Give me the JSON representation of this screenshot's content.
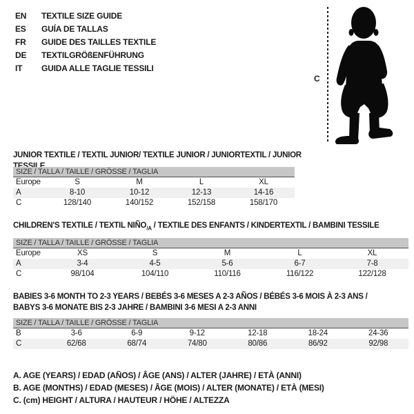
{
  "header": {
    "languages": [
      {
        "code": "EN",
        "title": "TEXTILE SIZE GUIDE"
      },
      {
        "code": "ES",
        "title": "GUÍA DE TALLAS"
      },
      {
        "code": "FR",
        "title": "GUIDE DES TAILLES TEXTILE"
      },
      {
        "code": "DE",
        "title": "TEXTILGRÖßENFÜHRUNG"
      },
      {
        "code": "IT",
        "title": "GUIDA ALLE TAGLIE TESSILI"
      }
    ]
  },
  "figure": {
    "measure_label": "C"
  },
  "colors": {
    "table_header_bg": "#c6c6c6",
    "table_header_border": "#4e4e4e",
    "row_shade": "#f0f0f0",
    "silhouette": "#0a0a0a",
    "text": "#1a1a1a"
  },
  "sections": [
    {
      "title_parts": [
        {
          "text": "JUNIOR TEXTILE / TEXTIL JUNIOR/ TEXTILE JUNIOR / JUNIORTEXTIL / JUNIOR TESSILE"
        }
      ],
      "table": {
        "size_header": "SIZE / TALLA / TAILLE / GRÖSSE / TAGLIA",
        "rows": [
          {
            "label": "Europe",
            "cells": [
              "S",
              "M",
              "L",
              "XL"
            ],
            "shaded": false
          },
          {
            "label": "A",
            "cells": [
              "8-10",
              "10-12",
              "12-13",
              "14-16"
            ],
            "shaded": true
          },
          {
            "label": "C",
            "cells": [
              "128/140",
              "140/152",
              "152/158",
              "158/170"
            ],
            "shaded": false
          }
        ]
      }
    },
    {
      "title_parts": [
        {
          "text": "CHILDREN'S TEXTILE / TEXTIL NIÑO"
        },
        {
          "text": "/A",
          "sub": true
        },
        {
          "text": " / TEXTILE DES ENFANTS / KINDERTEXTIL / BAMBINI TESSILE"
        }
      ],
      "table": {
        "size_header": "SIZE / TALLA / TAILLE / GRÖSSE / TAGLIA",
        "rows": [
          {
            "label": "Europe",
            "cells": [
              "XS",
              "S",
              "M",
              "L",
              "XL"
            ],
            "shaded": false
          },
          {
            "label": "A",
            "cells": [
              "3-4",
              "4-5",
              "5-6",
              "6-7",
              "7-8"
            ],
            "shaded": true
          },
          {
            "label": "C",
            "cells": [
              "98/104",
              "104/110",
              "110/116",
              "116/122",
              "122/128"
            ],
            "shaded": false
          }
        ]
      }
    },
    {
      "title_parts": [
        {
          "text": "BABIES 3-6 MONTH TO 2-3 YEARS / BEBÉS 3-6 MESES A 2-3 AÑOS / BÉBÉS 3-6 MOIS À 2-3 ANS /"
        },
        {
          "br": true
        },
        {
          "text": "BABYS 3-6 MONATE BIS 2-3 JAHRE / BAMBINI 3-6 MESI A 2-3 ANNI"
        }
      ],
      "table": {
        "size_header": "SIZE / TALLA / TAILLE / GRÖSSE / TAGLIA",
        "rows": [
          {
            "label": "B",
            "cells": [
              "3-6",
              "6-9",
              "9-12",
              "12-18",
              "18-24",
              "24-36"
            ],
            "shaded": false
          },
          {
            "label": "C",
            "cells": [
              "62/68",
              "68/74",
              "74/80",
              "80/86",
              "86/92",
              "92/98"
            ],
            "shaded": true
          }
        ]
      }
    }
  ],
  "notes": [
    "A. AGE (YEARS) / EDAD (AÑOS) / ÂGE (ANS) / ALTER (JAHRE) / ETÀ (ANNI)",
    "B. AGE (MONTHS) / EDAD (MESES) / ÂGE (MOIS) / ALTER (MONATE) / ETÀ (MESI)",
    "C. (cm) HEIGHT / ALTURA / HAUTEUR / HÖHE / ALTEZZA"
  ]
}
